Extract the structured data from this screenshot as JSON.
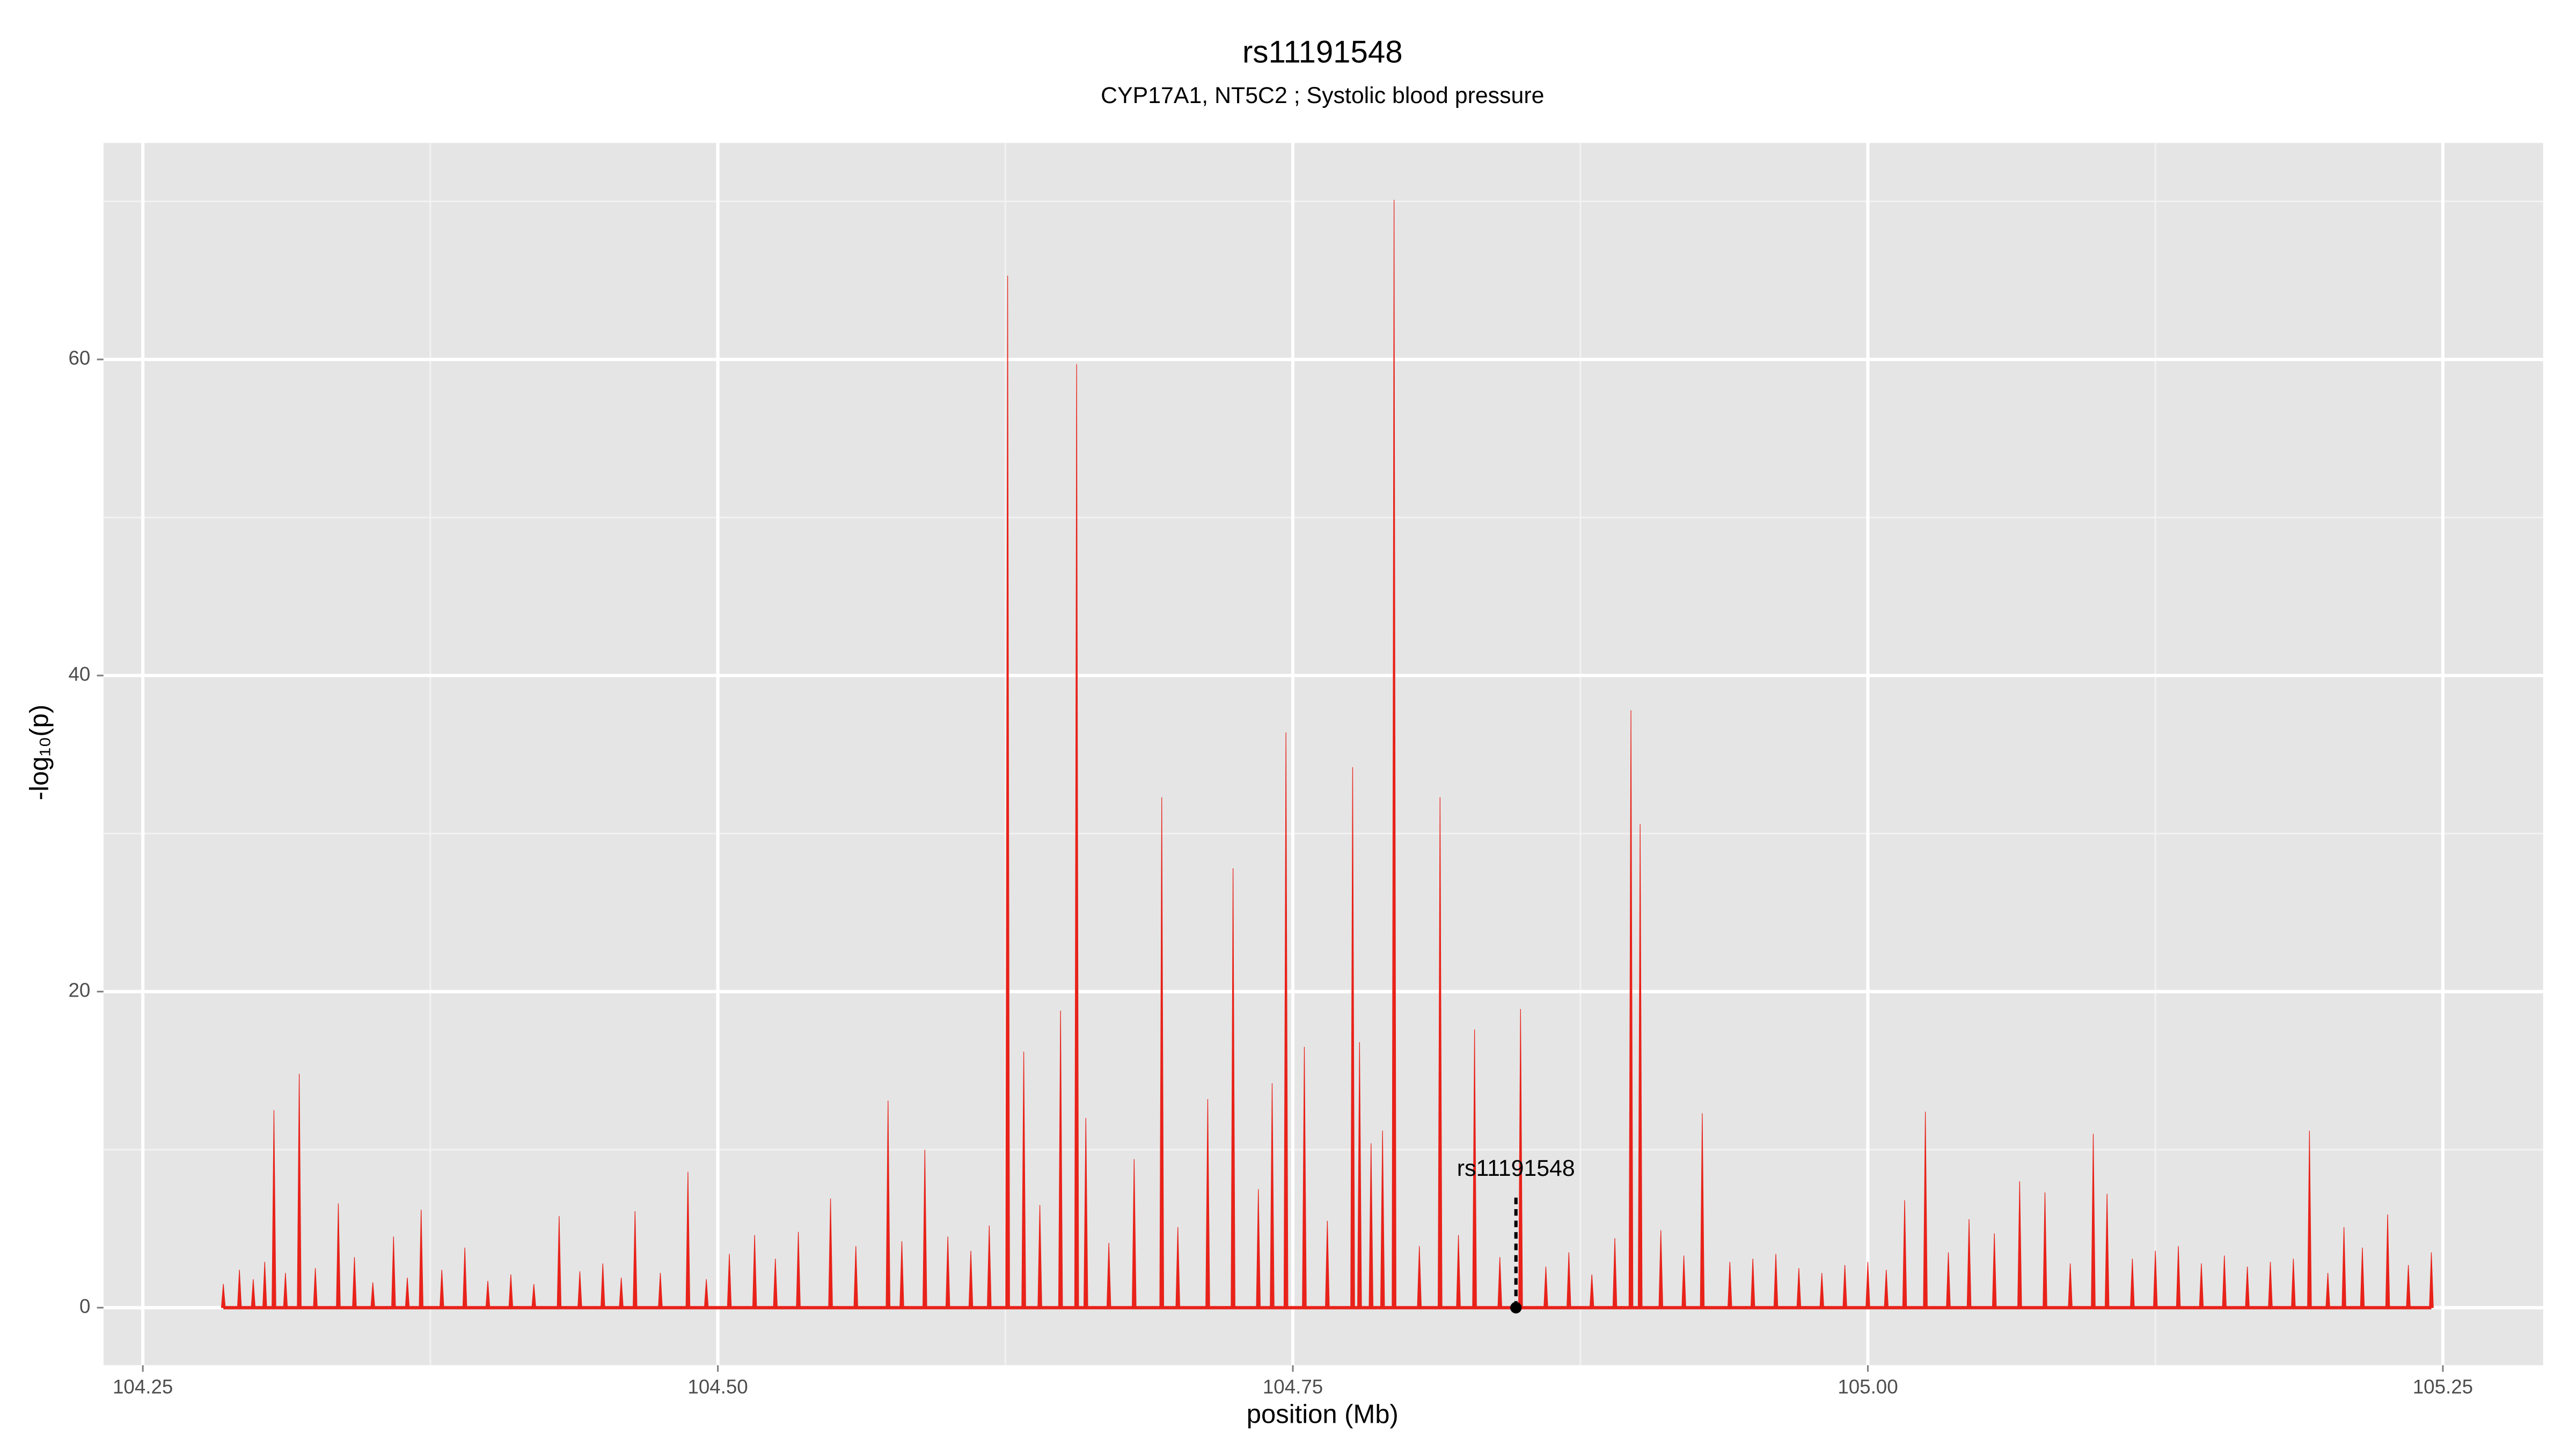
{
  "chart_data": {
    "type": "spike",
    "title": "rs11191548",
    "subtitle": "CYP17A1, NT5C2 ; Systolic blood pressure",
    "xlabel": "position (Mb)",
    "ylabel": "-log₁₀(p)",
    "color": "#e8221a",
    "x": [
      104.285,
      104.292,
      104.298,
      104.303,
      104.307,
      104.312,
      104.318,
      104.325,
      104.335,
      104.342,
      104.35,
      104.359,
      104.365,
      104.371,
      104.38,
      104.39,
      104.4,
      104.41,
      104.42,
      104.431,
      104.44,
      104.45,
      104.458,
      104.464,
      104.475,
      104.487,
      104.495,
      104.505,
      104.516,
      104.525,
      104.535,
      104.549,
      104.56,
      104.574,
      104.58,
      104.59,
      104.6,
      104.61,
      104.618,
      104.626,
      104.633,
      104.64,
      104.649,
      104.656,
      104.66,
      104.67,
      104.681,
      104.693,
      104.7,
      104.713,
      104.724,
      104.735,
      104.741,
      104.747,
      104.755,
      104.765,
      104.776,
      104.779,
      104.784,
      104.789,
      104.794,
      104.805,
      104.814,
      104.822,
      104.829,
      104.84,
      104.849,
      104.86,
      104.87,
      104.88,
      104.89,
      104.897,
      104.901,
      104.91,
      104.92,
      104.928,
      104.94,
      104.95,
      104.96,
      104.97,
      104.98,
      104.99,
      105.0,
      105.008,
      105.016,
      105.025,
      105.035,
      105.044,
      105.055,
      105.066,
      105.077,
      105.088,
      105.098,
      105.104,
      105.115,
      105.125,
      105.135,
      105.145,
      105.155,
      105.165,
      105.175,
      105.185,
      105.192,
      105.2,
      105.207,
      105.215,
      105.226,
      105.235,
      105.245
    ],
    "values": [
      1.5,
      2.4,
      1.8,
      2.9,
      12.5,
      2.2,
      14.8,
      2.5,
      6.6,
      3.2,
      1.6,
      4.5,
      1.9,
      6.2,
      2.4,
      3.8,
      1.7,
      2.1,
      1.5,
      5.8,
      2.3,
      2.8,
      1.9,
      6.1,
      2.2,
      8.6,
      1.8,
      3.4,
      4.6,
      3.1,
      4.8,
      6.9,
      3.9,
      13.1,
      4.2,
      10.0,
      4.5,
      3.6,
      5.2,
      65.3,
      16.2,
      6.5,
      18.8,
      59.7,
      12.0,
      4.1,
      9.4,
      32.3,
      5.1,
      13.2,
      27.8,
      7.5,
      14.2,
      36.4,
      16.5,
      5.5,
      34.2,
      16.8,
      10.4,
      11.2,
      70.1,
      3.9,
      32.3,
      4.6,
      17.6,
      3.2,
      18.9,
      2.6,
      3.5,
      2.1,
      4.4,
      37.8,
      30.6,
      4.9,
      3.3,
      12.3,
      2.9,
      3.1,
      3.4,
      2.5,
      2.2,
      2.7,
      2.9,
      2.4,
      6.8,
      12.4,
      3.5,
      5.6,
      4.7,
      8.0,
      7.3,
      2.8,
      11.0,
      7.2,
      3.1,
      3.6,
      3.9,
      2.8,
      3.3,
      2.6,
      2.9,
      3.1,
      11.2,
      2.2,
      5.1,
      3.8,
      5.9,
      2.7,
      3.5
    ],
    "annotation": {
      "text": "rs11191548",
      "x": 104.847,
      "y": 0
    },
    "xlim": [
      104.2329,
      105.2936
    ],
    "ylim": [
      -3.64,
      73.7
    ],
    "xticks": [
      104.25,
      {
        "value": 104.5,
        "label": "104.50"
      },
      104.75,
      {
        "value": 105.0,
        "label": "105.00"
      },
      105.25
    ],
    "yticks": [
      0,
      20,
      40,
      60
    ],
    "xminor": [
      104.375,
      104.625,
      104.875,
      105.125
    ],
    "yminor": [
      10,
      30,
      50,
      70
    ],
    "grid": true
  }
}
